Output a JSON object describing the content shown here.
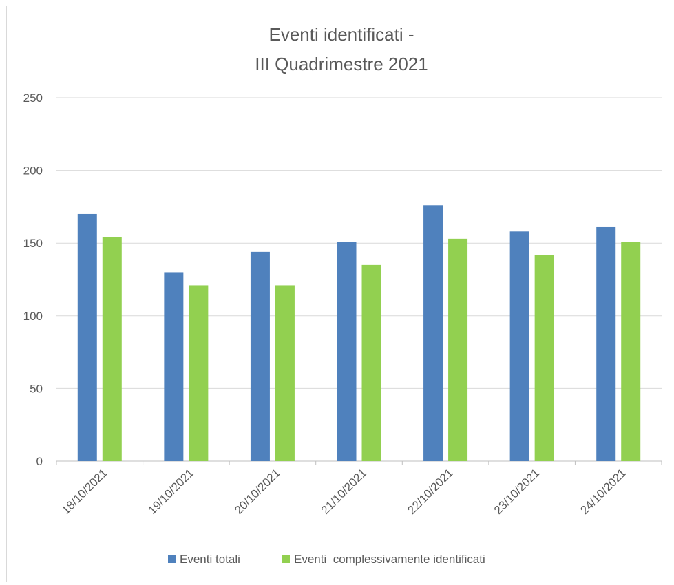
{
  "chart_data": {
    "type": "bar",
    "title_lines": [
      "Eventi identificati -",
      "III Quadrimestre 2021"
    ],
    "categories": [
      "18/10/2021",
      "19/10/2021",
      "20/10/2021",
      "21/10/2021",
      "22/10/2021",
      "23/10/2021",
      "24/10/2021"
    ],
    "series": [
      {
        "name": "Eventi totali",
        "color": "#4f81bd",
        "values": [
          170,
          130,
          144,
          151,
          176,
          158,
          161
        ]
      },
      {
        "name": "Eventi  complessivamente identificati",
        "color": "#92d050",
        "values": [
          154,
          121,
          121,
          135,
          153,
          142,
          151
        ]
      }
    ],
    "ylim": [
      0,
      250
    ],
    "yticks": [
      0,
      50,
      100,
      150,
      200,
      250
    ],
    "grid": true,
    "legend_position": "bottom"
  }
}
